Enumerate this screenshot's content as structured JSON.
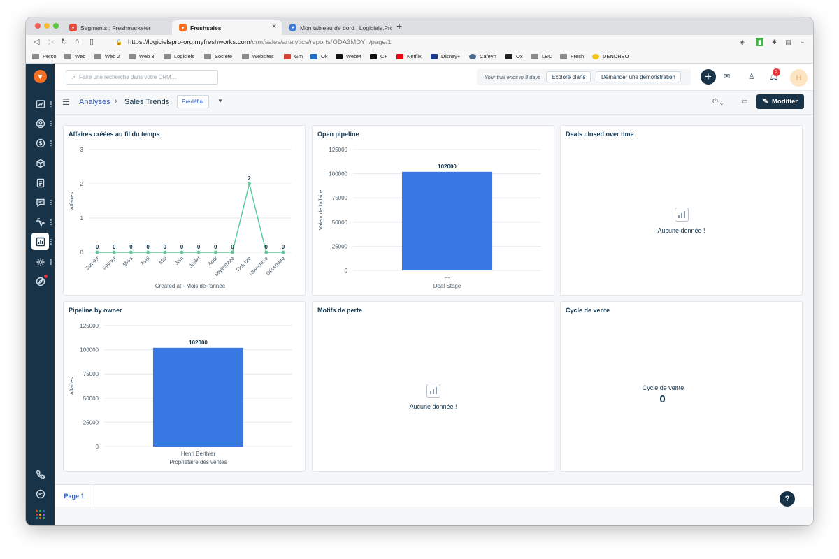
{
  "browser": {
    "tabs": [
      {
        "label": "Segments : Freshmarketer",
        "color": "#e24a3b"
      },
      {
        "label": "Freshsales",
        "color": "#f56f23"
      },
      {
        "label": "Mon tableau de bord | Logiciels.Pro",
        "color": "#3b7bd6"
      }
    ],
    "url_host": "https://logicielspro-org.myfreshworks.com",
    "url_path": "/crm/sales/analytics/reports/ODA3MDY=/page/1",
    "bookmarks": [
      "Perso",
      "Web",
      "Web 2",
      "Web 3",
      "Logiciels",
      "Societe",
      "Websites",
      "Gm",
      "Ok",
      "WebM",
      "C+",
      "Netflix",
      "Disney+",
      "Cafeyn",
      "Ox",
      "LBC",
      "Fresh",
      "DENDREO"
    ]
  },
  "topbar": {
    "search_placeholder": "Faire une recherche dans votre CRM…",
    "trial_text": "Your trial ends in 8 days",
    "explore_label": "Explore plans",
    "demo_label": "Demander une démonstration",
    "notif_count": "2",
    "avatar_initial": "H"
  },
  "subbar": {
    "breadcrumb": "Analyses",
    "title": "Sales Trends",
    "tag": "Prédéfini",
    "modify_label": "Modifier"
  },
  "cards": {
    "c1_title": "Affaires créées au fil du temps",
    "c2_title": "Open pipeline",
    "c3_title": "Deals closed over time",
    "c4_title": "Pipeline by owner",
    "c5_title": "Motifs de perte",
    "c6_title": "Cycle de vente",
    "no_data": "Aucune donnée !",
    "cycle_label": "Cycle de vente",
    "cycle_value": "0"
  },
  "footer": {
    "page_tab": "Page 1",
    "help": "?"
  },
  "chart_data": [
    {
      "type": "line",
      "title": "Affaires créées au fil du temps",
      "categories": [
        "Janvier",
        "Février",
        "Mars",
        "Avril",
        "Mai",
        "Juin",
        "Juillet",
        "Août",
        "Septembre",
        "Octobre",
        "Novembre",
        "Décembre"
      ],
      "values": [
        0,
        0,
        0,
        0,
        0,
        0,
        0,
        0,
        0,
        2,
        0,
        0
      ],
      "ylabel": "Affaires",
      "xlabel": "Created at - Mois de l'année",
      "yticks": [
        0,
        1,
        2,
        3
      ],
      "ylim": [
        0,
        3
      ],
      "color": "#5ccb9d"
    },
    {
      "type": "bar",
      "title": "Open pipeline",
      "categories": [
        "---"
      ],
      "values": [
        102000
      ],
      "ylabel": "Valeur de l'affaire",
      "xlabel": "Deal Stage",
      "yticks": [
        0,
        25000,
        50000,
        75000,
        100000,
        125000
      ],
      "ylim": [
        0,
        125000
      ],
      "color": "#3778e2"
    },
    {
      "type": "bar",
      "title": "Pipeline by owner",
      "categories": [
        "Henri Berthier"
      ],
      "values": [
        102000
      ],
      "ylabel": "Affaires",
      "xlabel": "Propriétaire des ventes",
      "yticks": [
        0,
        25000,
        50000,
        75000,
        100000,
        125000
      ],
      "ylim": [
        0,
        125000
      ],
      "color": "#3778e2"
    }
  ]
}
